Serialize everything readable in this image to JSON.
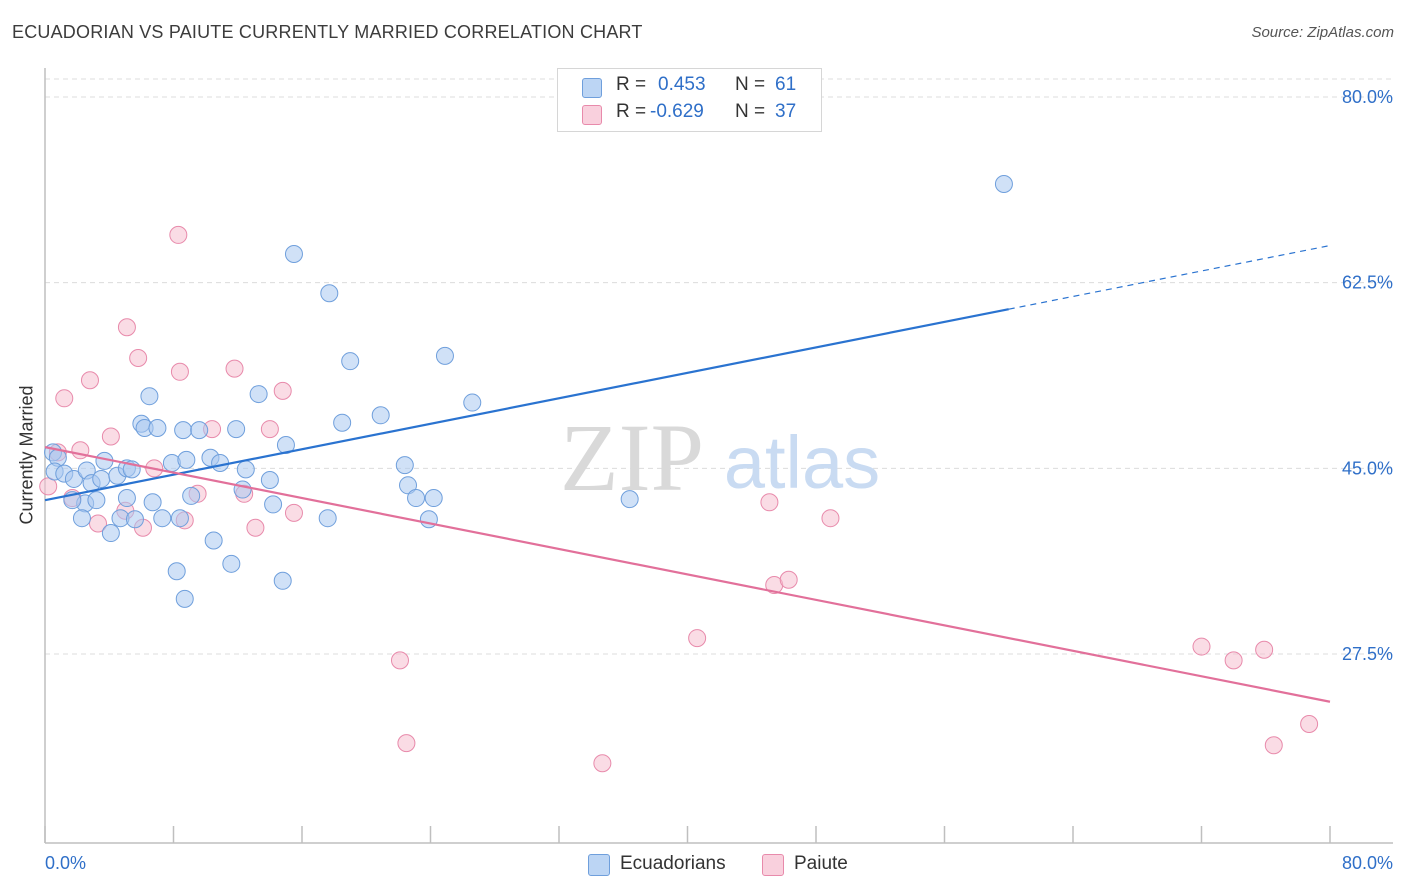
{
  "header": {
    "title": "ECUADORIAN VS PAIUTE CURRENTLY MARRIED CORRELATION CHART",
    "source": "Source: ZipAtlas.com"
  },
  "watermark": {
    "zip": "ZIP",
    "atlas": "atlas"
  },
  "legend": {
    "rows": [
      {
        "r_label": "R =",
        "r_value": "0.453",
        "n_label": "N =",
        "n_value": "61"
      },
      {
        "r_label": "R =",
        "r_value": "-0.629",
        "n_label": "N =",
        "n_value": "37"
      }
    ]
  },
  "bottom_legend": {
    "series1": "Ecuadorians",
    "series2": "Paiute"
  },
  "colors": {
    "blue_fill": "#a9c8f0",
    "blue_stroke": "#6f9fdc",
    "blue_line": "#2a73d0",
    "pink_fill": "#f6bfd0",
    "pink_stroke": "#e88aab",
    "pink_line": "#e2709a",
    "tick_label": "#2f6fc8",
    "grid": "#dcdcdc"
  },
  "chart_data": {
    "type": "scatter",
    "title": "ECUADORIAN VS PAIUTE CURRENTLY MARRIED CORRELATION CHART",
    "xlabel": "",
    "ylabel": "Currently Married",
    "xlim": [
      0,
      80
    ],
    "ylim": [
      10,
      85
    ],
    "x_tick_labels": [
      "0.0%",
      "80.0%"
    ],
    "y_ticks": [
      27.5,
      45.0,
      62.5,
      80.0
    ],
    "y_tick_labels": [
      "27.5%",
      "45.0%",
      "62.5%",
      "80.0%"
    ],
    "grid": true,
    "legend_position": "top-center",
    "series": [
      {
        "name": "Ecuadorians",
        "r": 0.453,
        "n": 61,
        "trend": {
          "x": [
            0,
            60
          ],
          "y": [
            42.0,
            60.0
          ],
          "dashed_to": {
            "x": 80,
            "y": 66.0
          }
        },
        "points": [
          [
            0.5,
            46.5
          ],
          [
            0.8,
            46.0
          ],
          [
            0.6,
            44.7
          ],
          [
            1.2,
            44.5
          ],
          [
            1.8,
            44.0
          ],
          [
            2.6,
            44.8
          ],
          [
            2.9,
            43.6
          ],
          [
            2.5,
            41.7
          ],
          [
            1.7,
            42.0
          ],
          [
            3.2,
            42.0
          ],
          [
            3.7,
            45.7
          ],
          [
            3.5,
            44.0
          ],
          [
            4.5,
            44.3
          ],
          [
            5.1,
            45.0
          ],
          [
            5.4,
            44.9
          ],
          [
            5.1,
            42.2
          ],
          [
            4.7,
            40.3
          ],
          [
            4.1,
            38.9
          ],
          [
            6.0,
            49.2
          ],
          [
            6.2,
            48.8
          ],
          [
            7.0,
            48.8
          ],
          [
            6.7,
            41.8
          ],
          [
            7.3,
            40.3
          ],
          [
            6.5,
            51.8
          ],
          [
            7.9,
            45.5
          ],
          [
            8.8,
            45.8
          ],
          [
            8.6,
            48.6
          ],
          [
            9.6,
            48.6
          ],
          [
            8.4,
            40.3
          ],
          [
            9.1,
            42.4
          ],
          [
            10.3,
            46.0
          ],
          [
            10.9,
            45.5
          ],
          [
            11.9,
            48.7
          ],
          [
            12.3,
            43.0
          ],
          [
            12.5,
            44.9
          ],
          [
            13.3,
            52.0
          ],
          [
            14.0,
            43.9
          ],
          [
            14.2,
            41.6
          ],
          [
            15.0,
            47.2
          ],
          [
            10.5,
            38.2
          ],
          [
            11.6,
            36.0
          ],
          [
            8.2,
            35.3
          ],
          [
            8.7,
            32.7
          ],
          [
            14.8,
            34.4
          ],
          [
            15.5,
            65.2
          ],
          [
            17.7,
            61.5
          ],
          [
            18.5,
            49.3
          ],
          [
            19.0,
            55.1
          ],
          [
            20.9,
            50.0
          ],
          [
            22.4,
            45.3
          ],
          [
            22.6,
            43.4
          ],
          [
            23.1,
            42.2
          ],
          [
            24.2,
            42.2
          ],
          [
            23.9,
            40.2
          ],
          [
            24.9,
            55.6
          ],
          [
            26.6,
            51.2
          ],
          [
            17.6,
            40.3
          ],
          [
            36.4,
            42.1
          ],
          [
            59.7,
            71.8
          ],
          [
            2.3,
            40.3
          ],
          [
            5.6,
            40.2
          ]
        ]
      },
      {
        "name": "Paiute",
        "r": -0.629,
        "n": 37,
        "trend": {
          "x": [
            0,
            80
          ],
          "y": [
            47.0,
            23.0
          ]
        },
        "points": [
          [
            0.2,
            43.3
          ],
          [
            1.2,
            51.6
          ],
          [
            2.8,
            53.3
          ],
          [
            1.7,
            42.2
          ],
          [
            2.2,
            46.7
          ],
          [
            3.3,
            39.8
          ],
          [
            4.1,
            48.0
          ],
          [
            5.0,
            41.0
          ],
          [
            5.1,
            58.3
          ],
          [
            5.8,
            55.4
          ],
          [
            6.1,
            39.4
          ],
          [
            6.8,
            45.0
          ],
          [
            8.3,
            67.0
          ],
          [
            8.4,
            54.1
          ],
          [
            8.7,
            40.1
          ],
          [
            9.5,
            42.6
          ],
          [
            10.4,
            48.7
          ],
          [
            11.8,
            54.4
          ],
          [
            12.4,
            42.6
          ],
          [
            13.1,
            39.4
          ],
          [
            14.0,
            48.7
          ],
          [
            14.8,
            52.3
          ],
          [
            15.5,
            40.8
          ],
          [
            22.1,
            26.9
          ],
          [
            22.5,
            19.1
          ],
          [
            34.7,
            17.2
          ],
          [
            45.1,
            41.8
          ],
          [
            45.4,
            34.0
          ],
          [
            46.3,
            34.5
          ],
          [
            48.9,
            40.3
          ],
          [
            72.0,
            28.2
          ],
          [
            74.0,
            26.9
          ],
          [
            75.9,
            27.9
          ],
          [
            76.5,
            18.9
          ],
          [
            78.7,
            20.9
          ],
          [
            0.8,
            46.5
          ],
          [
            40.6,
            29.0
          ]
        ]
      }
    ]
  }
}
